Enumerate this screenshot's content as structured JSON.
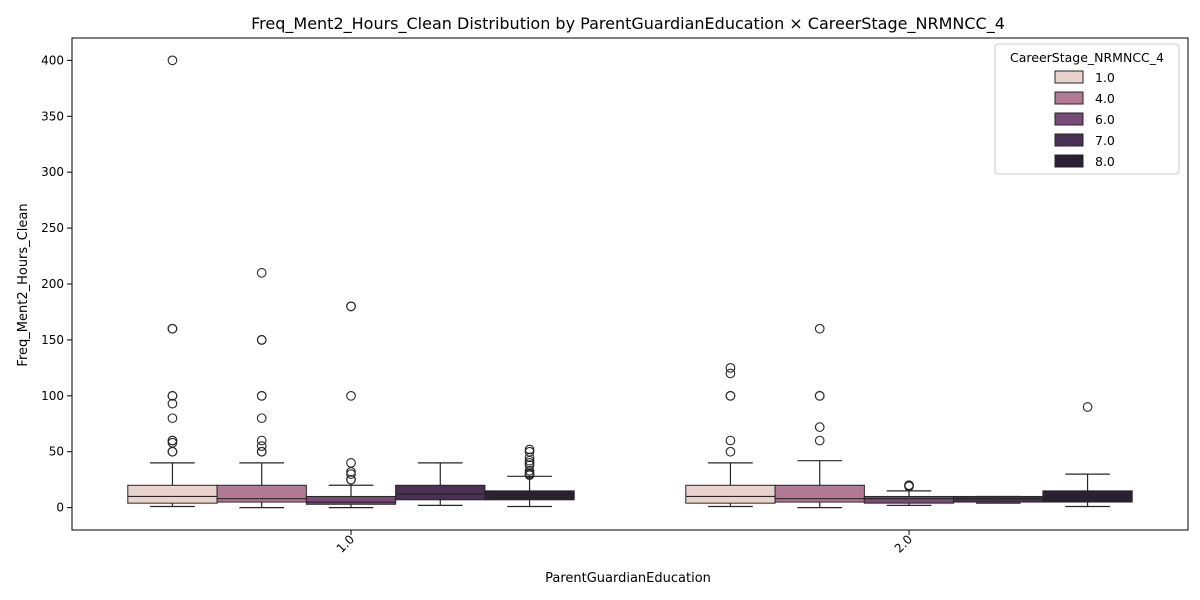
{
  "chart_data": {
    "type": "box",
    "title": "Freq_Ment2_Hours_Clean Distribution by ParentGuardianEducation × CareerStage_NRMNCC_4",
    "xlabel": "ParentGuardianEducation",
    "ylabel": "Freq_Ment2_Hours_Clean",
    "categories": [
      "1.0",
      "2.0"
    ],
    "ylim": [
      -20,
      420
    ],
    "yticks": [
      0,
      50,
      100,
      150,
      200,
      250,
      300,
      350,
      400
    ],
    "legend": {
      "title": "CareerStage_NRMNCC_4",
      "position": "top-right"
    },
    "series": [
      {
        "name": "1.0",
        "color": "#ebd3cd",
        "boxes": [
          {
            "category": "1.0",
            "whislo": 1,
            "q1": 4,
            "median": 10,
            "q3": 20,
            "whishi": 40,
            "fliers": [
              400,
              160,
              160,
              100,
              100,
              93,
              80,
              60,
              60,
              58,
              50,
              50
            ]
          },
          {
            "category": "2.0",
            "whislo": 1,
            "q1": 4,
            "median": 10,
            "q3": 20,
            "whishi": 40,
            "fliers": [
              125,
              120,
              100,
              100,
              60,
              50
            ]
          }
        ]
      },
      {
        "name": "4.0",
        "color": "#b27a95",
        "boxes": [
          {
            "category": "1.0",
            "whislo": 0,
            "q1": 5,
            "median": 8,
            "q3": 20,
            "whishi": 40,
            "fliers": [
              210,
              150,
              150,
              100,
              100,
              80,
              60,
              55,
              50,
              50
            ]
          },
          {
            "category": "2.0",
            "whislo": 0,
            "q1": 5,
            "median": 8,
            "q3": 20,
            "whishi": 42,
            "fliers": [
              160,
              100,
              100,
              72,
              60
            ]
          }
        ]
      },
      {
        "name": "6.0",
        "color": "#774a77",
        "boxes": [
          {
            "category": "1.0",
            "whislo": 0,
            "q1": 3,
            "median": 5,
            "q3": 10,
            "whishi": 20,
            "fliers": [
              180,
              180,
              100,
              40,
              32,
              30,
              25,
              25
            ]
          },
          {
            "category": "2.0",
            "whislo": 2,
            "q1": 4,
            "median": 8,
            "q3": 10,
            "whishi": 15,
            "fliers": [
              20,
              20,
              19
            ]
          }
        ]
      },
      {
        "name": "7.0",
        "color": "#4b3055",
        "boxes": [
          {
            "category": "1.0",
            "whislo": 2,
            "q1": 7,
            "median": 12,
            "q3": 20,
            "whishi": 40,
            "fliers": []
          },
          {
            "category": "2.0",
            "whislo": 4,
            "q1": 5,
            "median": 8,
            "q3": 10,
            "whishi": 10,
            "fliers": []
          }
        ]
      },
      {
        "name": "8.0",
        "color": "#2b1f33",
        "boxes": [
          {
            "category": "1.0",
            "whislo": 1,
            "q1": 7,
            "median": 10,
            "q3": 15,
            "whishi": 28,
            "fliers": [
              52,
              50,
              45,
              42,
              40,
              38,
              33,
              31,
              30,
              29
            ]
          },
          {
            "category": "2.0",
            "whislo": 1,
            "q1": 5,
            "median": 8,
            "q3": 15,
            "whishi": 30,
            "fliers": [
              90
            ]
          }
        ]
      }
    ]
  }
}
